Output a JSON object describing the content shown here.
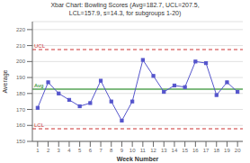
{
  "chart_data": {
    "type": "line",
    "title": "Xbar Chart: Bowling Scores (Avg=182.7, UCL=207.5,\nLCL=157.9, s=14.3, for subgroups 1-20)",
    "xlabel": "Week Number",
    "ylabel": "Average",
    "x": [
      1,
      2,
      3,
      4,
      5,
      6,
      7,
      8,
      9,
      10,
      11,
      12,
      13,
      14,
      15,
      16,
      17,
      18,
      19,
      20
    ],
    "values": [
      171,
      187,
      180,
      176,
      172,
      174,
      188,
      175,
      163,
      175,
      201,
      191,
      181,
      185,
      184,
      200,
      199,
      179,
      187,
      181
    ],
    "color": "#5555cc",
    "marker": "square",
    "xlim": [
      0.5,
      20.5
    ],
    "xticks": [
      1,
      2,
      3,
      4,
      5,
      6,
      7,
      8,
      9,
      10,
      11,
      12,
      13,
      14,
      15,
      16,
      17,
      18,
      19,
      20
    ],
    "ylim": [
      150,
      225
    ],
    "yticks": [
      150,
      160,
      170,
      180,
      190,
      200,
      210,
      220
    ],
    "grid": true,
    "annotations": [
      {
        "text": "Avg",
        "value": 182.7,
        "color": "#007700",
        "line_style": "solid"
      },
      {
        "text": "UCL",
        "value": 207.5,
        "color": "#cc3333",
        "line_style": "dashed"
      },
      {
        "text": "LCL",
        "value": 157.9,
        "color": "#cc3333",
        "line_style": "dashed"
      }
    ]
  }
}
